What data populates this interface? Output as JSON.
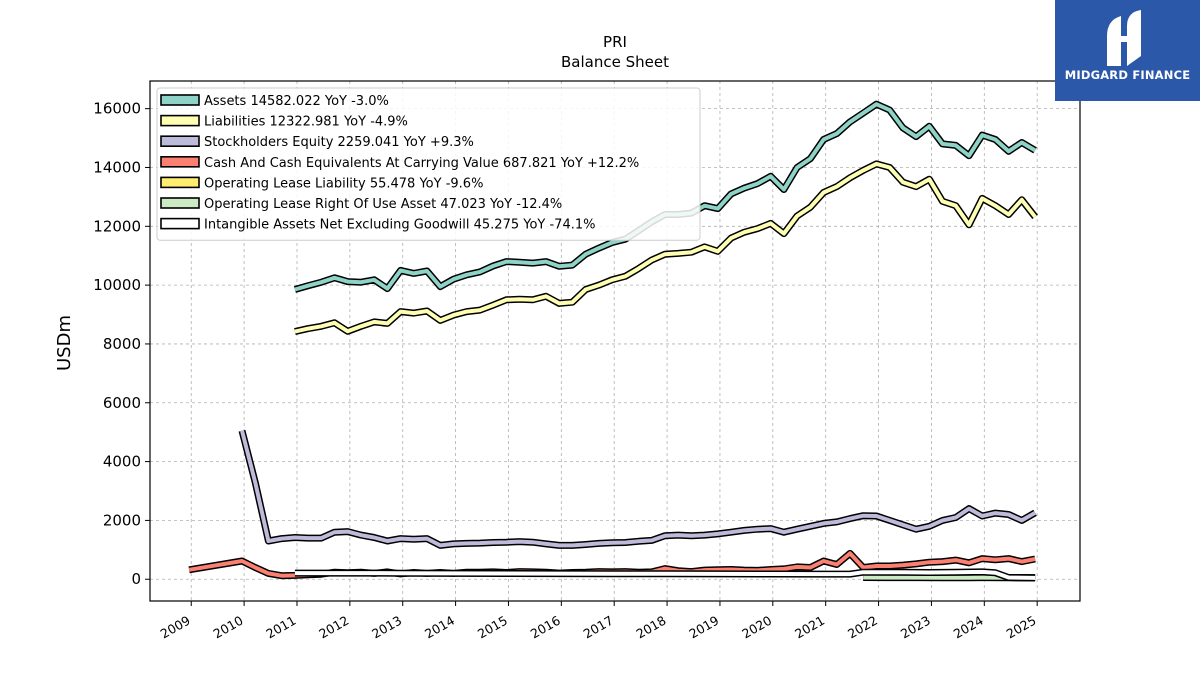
{
  "logo": {
    "text": "MIDGARD FINANCE",
    "bg_color": "#2b58a8"
  },
  "chart_data": {
    "type": "line",
    "title": "PRI",
    "subtitle": "Balance  Sheet",
    "xlabel": "",
    "ylabel": "USDm",
    "x_range": [
      2008.22,
      2025.81
    ],
    "ylim": [
      -740,
      16940
    ],
    "yticks": [
      0,
      2000,
      4000,
      6000,
      8000,
      10000,
      12000,
      14000,
      16000
    ],
    "xticks": [
      "2009",
      "2010",
      "2011",
      "2012",
      "2013",
      "2014",
      "2015",
      "2016",
      "2017",
      "2018",
      "2019",
      "2020",
      "2021",
      "2022",
      "2023",
      "2024",
      "2025"
    ],
    "grid": true,
    "legend_position": "top-left",
    "series": [
      {
        "name": "Assets",
        "legend_label": "Assets  14582.022 YoY -3.0%",
        "color": "#8dd3c7",
        "points": [
          [
            2010.96,
            9850
          ],
          [
            2011.21,
            9980
          ],
          [
            2011.46,
            10100
          ],
          [
            2011.71,
            10250
          ],
          [
            2011.96,
            10120
          ],
          [
            2012.21,
            10100
          ],
          [
            2012.46,
            10180
          ],
          [
            2012.71,
            9880
          ],
          [
            2012.96,
            10500
          ],
          [
            2013.21,
            10400
          ],
          [
            2013.46,
            10480
          ],
          [
            2013.71,
            9950
          ],
          [
            2013.96,
            10200
          ],
          [
            2014.21,
            10350
          ],
          [
            2014.46,
            10450
          ],
          [
            2014.71,
            10650
          ],
          [
            2014.96,
            10800
          ],
          [
            2015.21,
            10780
          ],
          [
            2015.46,
            10750
          ],
          [
            2015.71,
            10800
          ],
          [
            2015.96,
            10640
          ],
          [
            2016.21,
            10680
          ],
          [
            2016.46,
            11050
          ],
          [
            2016.71,
            11260
          ],
          [
            2016.96,
            11450
          ],
          [
            2017.21,
            11560
          ],
          [
            2017.46,
            11850
          ],
          [
            2017.71,
            12150
          ],
          [
            2017.96,
            12400
          ],
          [
            2018.21,
            12400
          ],
          [
            2018.46,
            12450
          ],
          [
            2018.71,
            12700
          ],
          [
            2018.96,
            12600
          ],
          [
            2019.21,
            13100
          ],
          [
            2019.46,
            13300
          ],
          [
            2019.71,
            13450
          ],
          [
            2019.96,
            13700
          ],
          [
            2020.21,
            13250
          ],
          [
            2020.46,
            14000
          ],
          [
            2020.71,
            14300
          ],
          [
            2020.96,
            14950
          ],
          [
            2021.21,
            15150
          ],
          [
            2021.46,
            15550
          ],
          [
            2021.71,
            15850
          ],
          [
            2021.96,
            16150
          ],
          [
            2022.21,
            15950
          ],
          [
            2022.46,
            15350
          ],
          [
            2022.71,
            15050
          ],
          [
            2022.96,
            15400
          ],
          [
            2023.21,
            14800
          ],
          [
            2023.46,
            14750
          ],
          [
            2023.71,
            14400
          ],
          [
            2023.96,
            15100
          ],
          [
            2024.21,
            14950
          ],
          [
            2024.46,
            14550
          ],
          [
            2024.71,
            14850
          ],
          [
            2024.96,
            14582
          ]
        ]
      },
      {
        "name": "Liabilities",
        "legend_label": "Liabilities  12322.981 YoY -4.9%",
        "color": "#ffffb3",
        "points": [
          [
            2010.96,
            8420
          ],
          [
            2011.21,
            8520
          ],
          [
            2011.46,
            8600
          ],
          [
            2011.71,
            8720
          ],
          [
            2011.96,
            8430
          ],
          [
            2012.21,
            8600
          ],
          [
            2012.46,
            8750
          ],
          [
            2012.71,
            8700
          ],
          [
            2012.96,
            9100
          ],
          [
            2013.21,
            9050
          ],
          [
            2013.46,
            9120
          ],
          [
            2013.71,
            8800
          ],
          [
            2013.96,
            8980
          ],
          [
            2014.21,
            9100
          ],
          [
            2014.46,
            9150
          ],
          [
            2014.71,
            9320
          ],
          [
            2014.96,
            9500
          ],
          [
            2015.21,
            9520
          ],
          [
            2015.46,
            9500
          ],
          [
            2015.71,
            9620
          ],
          [
            2015.96,
            9380
          ],
          [
            2016.21,
            9420
          ],
          [
            2016.46,
            9850
          ],
          [
            2016.71,
            10000
          ],
          [
            2016.96,
            10180
          ],
          [
            2017.21,
            10300
          ],
          [
            2017.46,
            10560
          ],
          [
            2017.71,
            10850
          ],
          [
            2017.96,
            11050
          ],
          [
            2018.21,
            11080
          ],
          [
            2018.46,
            11120
          ],
          [
            2018.71,
            11300
          ],
          [
            2018.96,
            11150
          ],
          [
            2019.21,
            11600
          ],
          [
            2019.46,
            11800
          ],
          [
            2019.71,
            11920
          ],
          [
            2019.96,
            12100
          ],
          [
            2020.21,
            11750
          ],
          [
            2020.46,
            12350
          ],
          [
            2020.71,
            12650
          ],
          [
            2020.96,
            13150
          ],
          [
            2021.21,
            13350
          ],
          [
            2021.46,
            13650
          ],
          [
            2021.71,
            13900
          ],
          [
            2021.96,
            14120
          ],
          [
            2022.21,
            14000
          ],
          [
            2022.46,
            13500
          ],
          [
            2022.71,
            13350
          ],
          [
            2022.96,
            13600
          ],
          [
            2023.21,
            12850
          ],
          [
            2023.46,
            12700
          ],
          [
            2023.71,
            12050
          ],
          [
            2023.96,
            12950
          ],
          [
            2024.21,
            12700
          ],
          [
            2024.46,
            12400
          ],
          [
            2024.71,
            12900
          ],
          [
            2024.96,
            12323
          ]
        ]
      },
      {
        "name": "Stockholders Equity",
        "legend_label": "Stockholders Equity  2259.041 YoY +9.3%",
        "color": "#bebada",
        "points": [
          [
            2009.96,
            5050
          ],
          [
            2010.21,
            3300
          ],
          [
            2010.46,
            1300
          ],
          [
            2010.71,
            1380
          ],
          [
            2010.96,
            1420
          ],
          [
            2011.21,
            1400
          ],
          [
            2011.46,
            1400
          ],
          [
            2011.71,
            1600
          ],
          [
            2011.96,
            1620
          ],
          [
            2012.21,
            1500
          ],
          [
            2012.46,
            1420
          ],
          [
            2012.71,
            1300
          ],
          [
            2012.96,
            1380
          ],
          [
            2013.21,
            1360
          ],
          [
            2013.46,
            1380
          ],
          [
            2013.71,
            1150
          ],
          [
            2013.96,
            1200
          ],
          [
            2014.21,
            1220
          ],
          [
            2014.46,
            1230
          ],
          [
            2014.71,
            1250
          ],
          [
            2014.96,
            1260
          ],
          [
            2015.21,
            1280
          ],
          [
            2015.46,
            1260
          ],
          [
            2015.71,
            1200
          ],
          [
            2015.96,
            1150
          ],
          [
            2016.21,
            1150
          ],
          [
            2016.46,
            1180
          ],
          [
            2016.71,
            1220
          ],
          [
            2016.96,
            1240
          ],
          [
            2017.21,
            1250
          ],
          [
            2017.46,
            1290
          ],
          [
            2017.71,
            1320
          ],
          [
            2017.96,
            1480
          ],
          [
            2018.21,
            1500
          ],
          [
            2018.46,
            1480
          ],
          [
            2018.71,
            1500
          ],
          [
            2018.96,
            1540
          ],
          [
            2019.21,
            1600
          ],
          [
            2019.46,
            1660
          ],
          [
            2019.71,
            1700
          ],
          [
            2019.96,
            1720
          ],
          [
            2020.21,
            1600
          ],
          [
            2020.46,
            1700
          ],
          [
            2020.71,
            1800
          ],
          [
            2020.96,
            1900
          ],
          [
            2021.21,
            1950
          ],
          [
            2021.46,
            2060
          ],
          [
            2021.71,
            2160
          ],
          [
            2021.96,
            2150
          ],
          [
            2022.21,
            2000
          ],
          [
            2022.46,
            1850
          ],
          [
            2022.71,
            1700
          ],
          [
            2022.96,
            1800
          ],
          [
            2023.21,
            2000
          ],
          [
            2023.46,
            2100
          ],
          [
            2023.71,
            2400
          ],
          [
            2023.96,
            2150
          ],
          [
            2024.21,
            2250
          ],
          [
            2024.46,
            2200
          ],
          [
            2024.71,
            2000
          ],
          [
            2024.96,
            2259
          ]
        ]
      },
      {
        "name": "Cash And Cash Equivalents At Carrying Value",
        "legend_label": "Cash And Cash Equivalents At Carrying Value  687.821 YoY +12.2%",
        "color": "#fb8072",
        "points": [
          [
            2008.96,
            320
          ],
          [
            2009.96,
            620
          ],
          [
            2010.21,
            400
          ],
          [
            2010.46,
            200
          ],
          [
            2010.71,
            120
          ],
          [
            2010.96,
            130
          ],
          [
            2011.21,
            150
          ],
          [
            2011.46,
            170
          ],
          [
            2011.71,
            240
          ],
          [
            2011.96,
            220
          ],
          [
            2012.21,
            240
          ],
          [
            2012.46,
            200
          ],
          [
            2012.71,
            250
          ],
          [
            2012.96,
            180
          ],
          [
            2013.21,
            230
          ],
          [
            2013.46,
            200
          ],
          [
            2013.71,
            230
          ],
          [
            2013.96,
            200
          ],
          [
            2014.21,
            240
          ],
          [
            2014.46,
            240
          ],
          [
            2014.71,
            250
          ],
          [
            2014.96,
            230
          ],
          [
            2015.21,
            260
          ],
          [
            2015.46,
            250
          ],
          [
            2015.71,
            240
          ],
          [
            2015.96,
            210
          ],
          [
            2016.21,
            230
          ],
          [
            2016.46,
            240
          ],
          [
            2016.71,
            260
          ],
          [
            2016.96,
            250
          ],
          [
            2017.21,
            260
          ],
          [
            2017.46,
            240
          ],
          [
            2017.71,
            250
          ],
          [
            2017.96,
            360
          ],
          [
            2018.21,
            290
          ],
          [
            2018.46,
            260
          ],
          [
            2018.71,
            310
          ],
          [
            2018.96,
            320
          ],
          [
            2019.21,
            330
          ],
          [
            2019.46,
            310
          ],
          [
            2019.71,
            300
          ],
          [
            2019.96,
            330
          ],
          [
            2020.21,
            350
          ],
          [
            2020.46,
            420
          ],
          [
            2020.71,
            400
          ],
          [
            2020.96,
            620
          ],
          [
            2021.21,
            500
          ],
          [
            2021.46,
            880
          ],
          [
            2021.71,
            400
          ],
          [
            2021.96,
            450
          ],
          [
            2022.21,
            450
          ],
          [
            2022.46,
            480
          ],
          [
            2022.71,
            520
          ],
          [
            2022.96,
            580
          ],
          [
            2023.21,
            600
          ],
          [
            2023.46,
            650
          ],
          [
            2023.71,
            560
          ],
          [
            2023.96,
            700
          ],
          [
            2024.21,
            660
          ],
          [
            2024.46,
            700
          ],
          [
            2024.71,
            600
          ],
          [
            2024.96,
            688
          ]
        ]
      },
      {
        "name": "Operating Lease Liability",
        "legend_label": "Operating Lease Liability  55.478 YoY -9.6%",
        "color": "#ffed6f",
        "points": [
          [
            2021.71,
            70
          ],
          [
            2022.21,
            65
          ],
          [
            2022.71,
            63
          ],
          [
            2023.21,
            61
          ],
          [
            2023.71,
            59
          ],
          [
            2023.96,
            61
          ],
          [
            2024.46,
            58
          ],
          [
            2024.96,
            55
          ]
        ]
      },
      {
        "name": "Operating Lease Right Of Use Asset",
        "legend_label": "Operating Lease Right Of Use Asset  47.023 YoY -12.4%",
        "color": "#ccebc5",
        "points": [
          [
            2021.71,
            58
          ],
          [
            2022.21,
            56
          ],
          [
            2022.71,
            54
          ],
          [
            2023.21,
            53
          ],
          [
            2023.71,
            52
          ],
          [
            2023.96,
            54
          ],
          [
            2024.46,
            50
          ],
          [
            2024.96,
            47
          ]
        ]
      },
      {
        "name": "Intangible Assets Net Excluding Goodwill",
        "legend_label": "Intangible Assets Net Excluding Goodwill  45.275 YoY -74.1%",
        "color": "#ffffff",
        "points": [
          [
            2010.96,
            210
          ],
          [
            2011.96,
            210
          ],
          [
            2012.96,
            205
          ],
          [
            2013.96,
            200
          ],
          [
            2014.96,
            195
          ],
          [
            2015.96,
            190
          ],
          [
            2016.96,
            188
          ],
          [
            2017.96,
            185
          ],
          [
            2018.96,
            180
          ],
          [
            2019.96,
            178
          ],
          [
            2020.96,
            175
          ],
          [
            2021.46,
            175
          ],
          [
            2021.71,
            240
          ],
          [
            2022.46,
            235
          ],
          [
            2022.96,
            230
          ],
          [
            2023.46,
            240
          ],
          [
            2023.96,
            250
          ],
          [
            2024.21,
            220
          ],
          [
            2024.46,
            60
          ],
          [
            2024.96,
            45
          ]
        ]
      }
    ]
  }
}
